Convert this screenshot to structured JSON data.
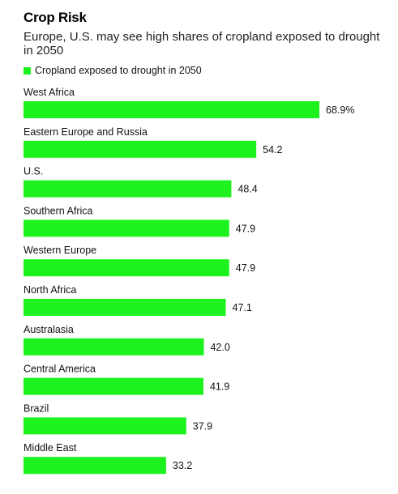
{
  "chart_data": {
    "type": "bar",
    "orientation": "horizontal",
    "title": "Crop Risk",
    "subtitle": "Europe, U.S. may see high shares of cropland exposed to drought in 2050",
    "series": [
      {
        "name": "Cropland exposed to drought in 2050",
        "color": "#1ef21e"
      }
    ],
    "categories": [
      "West Africa",
      "Eastern Europe and Russia",
      "U.S.",
      "Southern Africa",
      "Western Europe",
      "North Africa",
      "Australasia",
      "Central America",
      "Brazil",
      "Middle East"
    ],
    "values": [
      68.9,
      54.2,
      48.4,
      47.9,
      47.9,
      47.1,
      42.0,
      41.9,
      37.9,
      33.2
    ],
    "value_labels": [
      "68.9%",
      "54.2",
      "48.4",
      "47.9",
      "47.9",
      "47.1",
      "42.0",
      "41.9",
      "37.9",
      "33.2"
    ],
    "xlim": [
      0,
      100
    ],
    "grid": false,
    "legend": "top-left"
  }
}
